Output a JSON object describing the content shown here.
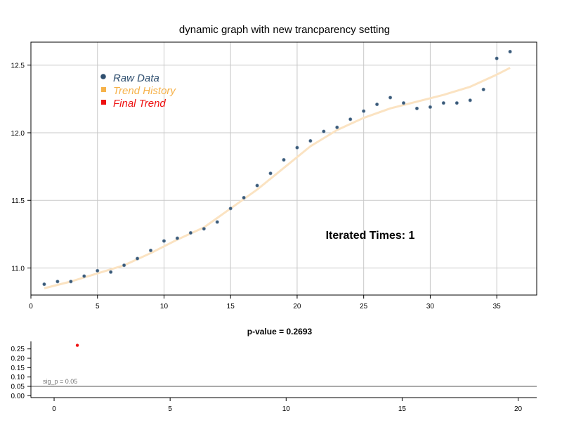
{
  "chart_data": [
    {
      "type": "scatter",
      "title": "dynamic graph with new trancparency setting",
      "xlim": [
        0,
        38
      ],
      "ylim": [
        10.8,
        12.67
      ],
      "xticks": [
        0,
        5,
        10,
        15,
        20,
        25,
        30,
        35
      ],
      "yticks": [
        11.0,
        11.5,
        12.0,
        12.5
      ],
      "ytick_labels": [
        "11.0",
        "11.5",
        "12.0",
        "12.5"
      ],
      "grid": true,
      "legend_position": "top-left",
      "legend": [
        {
          "label": "Raw Data",
          "color": "#2f4f6f",
          "marker": "circle"
        },
        {
          "label": "Trend History",
          "color": "#f6b24a",
          "marker": "square"
        },
        {
          "label": "Final Trend",
          "color": "#ee1111",
          "marker": "square"
        }
      ],
      "annotation": "Iterated Times: 1",
      "series": [
        {
          "name": "Raw Data",
          "color": "#3a5a78",
          "x": [
            1,
            2,
            3,
            4,
            5,
            6,
            7,
            8,
            9,
            10,
            11,
            12,
            13,
            14,
            15,
            16,
            17,
            18,
            19,
            20,
            21,
            22,
            23,
            24,
            25,
            26,
            27,
            28,
            29,
            30,
            31,
            32,
            33,
            34,
            35,
            36
          ],
          "y": [
            10.88,
            10.9,
            10.9,
            10.94,
            10.98,
            10.97,
            11.02,
            11.07,
            11.13,
            11.2,
            11.22,
            11.26,
            11.29,
            11.34,
            11.44,
            11.52,
            11.61,
            11.7,
            11.8,
            11.89,
            11.94,
            12.01,
            12.04,
            12.1,
            12.16,
            12.21,
            12.26,
            12.22,
            12.18,
            12.19,
            12.22,
            12.22,
            12.24,
            12.32,
            12.55,
            12.6
          ]
        },
        {
          "name": "Trend History",
          "color": "#fbe3c2",
          "x": [
            1,
            3,
            5,
            7,
            9,
            11,
            13,
            15,
            17,
            19,
            21,
            23,
            25,
            27,
            29,
            31,
            33,
            35,
            36
          ],
          "y": [
            10.85,
            10.9,
            10.96,
            11.02,
            11.11,
            11.21,
            11.3,
            11.44,
            11.58,
            11.74,
            11.9,
            12.02,
            12.11,
            12.18,
            12.23,
            12.28,
            12.34,
            12.43,
            12.48
          ]
        }
      ]
    },
    {
      "type": "scatter",
      "title": "p-value = 0.2693",
      "xlim": [
        -1,
        20.8
      ],
      "ylim": [
        -0.01,
        0.29
      ],
      "xticks": [
        0,
        5,
        10,
        15,
        20
      ],
      "yticks": [
        0.0,
        0.05,
        0.1,
        0.15,
        0.2,
        0.25
      ],
      "ytick_labels": [
        "0.00",
        "0.05",
        "0.10",
        "0.15",
        "0.20",
        "0.25"
      ],
      "reference_line": {
        "y": 0.05,
        "label": "sig_p = 0.05",
        "color": "#555555"
      },
      "series": [
        {
          "name": "",
          "color": "#ee1111",
          "x": [
            1
          ],
          "y": [
            0.2693
          ]
        }
      ]
    }
  ]
}
